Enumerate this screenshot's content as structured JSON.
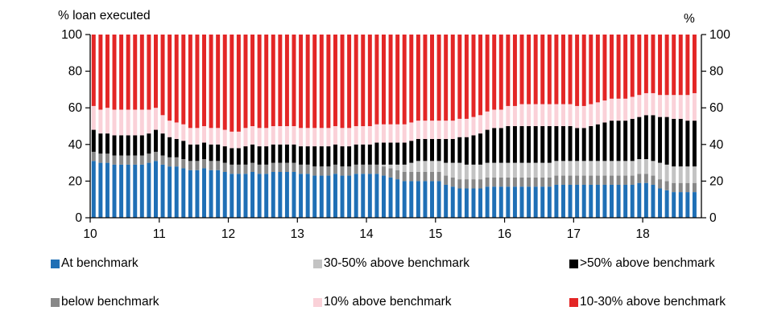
{
  "chart_data": {
    "type": "bar",
    "stacked": true,
    "title": "",
    "ylabel_left": "% loan executed",
    "ylabel_right": "%",
    "ylim": [
      0,
      100
    ],
    "yticks": [
      "0",
      "20",
      "40",
      "60",
      "80",
      "100"
    ],
    "x_range": [
      10,
      18.85
    ],
    "xticks": [
      "10",
      "11",
      "12",
      "13",
      "14",
      "15",
      "16",
      "17",
      "18"
    ],
    "x": [
      10.05,
      10.15,
      10.25,
      10.35,
      10.45,
      10.55,
      10.65,
      10.75,
      10.85,
      10.95,
      11.05,
      11.15,
      11.25,
      11.35,
      11.45,
      11.55,
      11.65,
      11.75,
      11.85,
      11.95,
      12.05,
      12.15,
      12.25,
      12.35,
      12.45,
      12.55,
      12.65,
      12.75,
      12.85,
      12.95,
      13.05,
      13.15,
      13.25,
      13.35,
      13.45,
      13.55,
      13.65,
      13.75,
      13.85,
      13.95,
      14.05,
      14.15,
      14.25,
      14.35,
      14.45,
      14.55,
      14.65,
      14.75,
      14.85,
      14.95,
      15.05,
      15.15,
      15.25,
      15.35,
      15.45,
      15.55,
      15.65,
      15.75,
      15.85,
      15.95,
      16.05,
      16.15,
      16.25,
      16.35,
      16.45,
      16.55,
      16.65,
      16.75,
      16.85,
      16.95,
      17.05,
      17.15,
      17.25,
      17.35,
      17.45,
      17.55,
      17.65,
      17.75,
      17.85,
      17.95,
      18.05,
      18.15,
      18.25,
      18.35,
      18.45,
      18.55,
      18.65,
      18.75
    ],
    "series": [
      {
        "name": "At benchmark",
        "color": "#1f6fb5",
        "values": [
          31,
          30,
          30,
          29,
          29,
          29,
          29,
          29,
          30,
          31,
          29,
          28,
          28,
          27,
          26,
          26,
          27,
          26,
          26,
          25,
          24,
          24,
          24,
          25,
          24,
          24,
          25,
          25,
          25,
          25,
          24,
          24,
          23,
          23,
          23,
          24,
          23,
          23,
          24,
          24,
          24,
          24,
          23,
          22,
          21,
          20,
          20,
          20,
          20,
          20,
          20,
          18,
          17,
          16,
          16,
          16,
          16,
          17,
          17,
          17,
          17,
          17,
          17,
          17,
          17,
          17,
          17,
          18,
          18,
          18,
          18,
          18,
          18,
          18,
          18,
          18,
          18,
          18,
          18,
          19,
          19,
          18,
          16,
          15,
          14,
          14,
          14,
          14
        ]
      },
      {
        "name": "below benchmark",
        "color": "#888888",
        "values": [
          5,
          5,
          5,
          5,
          5,
          5,
          5,
          5,
          5,
          5,
          5,
          5,
          5,
          5,
          5,
          5,
          5,
          5,
          5,
          5,
          5,
          5,
          5,
          5,
          5,
          5,
          5,
          5,
          5,
          5,
          5,
          5,
          5,
          5,
          5,
          5,
          5,
          5,
          5,
          5,
          5,
          5,
          5,
          5,
          5,
          5,
          5,
          5,
          5,
          5,
          5,
          5,
          5,
          5,
          5,
          5,
          5,
          5,
          5,
          5,
          5,
          5,
          5,
          5,
          5,
          5,
          5,
          5,
          5,
          5,
          5,
          5,
          5,
          5,
          5,
          5,
          5,
          5,
          5,
          5,
          5,
          5,
          5,
          5,
          5,
          5,
          5,
          5
        ]
      },
      {
        "name": "30-50% above benchmark",
        "color": "#c3c3c3",
        "values": [
          0,
          0,
          0,
          0,
          0,
          0,
          0,
          0,
          0,
          0,
          0,
          0,
          0,
          0,
          0,
          0,
          0,
          0,
          0,
          0,
          0,
          0,
          0,
          0,
          0,
          0,
          0,
          0,
          0,
          0,
          0,
          0,
          0,
          0,
          0,
          0,
          0,
          0,
          0,
          0,
          0,
          0,
          1,
          2,
          3,
          4,
          5,
          6,
          6,
          6,
          6,
          7,
          8,
          9,
          8,
          8,
          8,
          8,
          8,
          8,
          8,
          8,
          8,
          8,
          8,
          8,
          8,
          8,
          8,
          8,
          8,
          8,
          8,
          8,
          8,
          8,
          8,
          8,
          8,
          8,
          8,
          8,
          9,
          9,
          9,
          9,
          9,
          9
        ]
      },
      {
        "name": ">50% above benchmark",
        "color": "#000000",
        "values": [
          12,
          11,
          11,
          11,
          11,
          11,
          11,
          11,
          11,
          12,
          12,
          11,
          10,
          10,
          9,
          9,
          9,
          9,
          9,
          9,
          9,
          9,
          10,
          10,
          10,
          10,
          10,
          10,
          10,
          10,
          10,
          10,
          11,
          11,
          11,
          11,
          11,
          11,
          11,
          11,
          11,
          12,
          12,
          12,
          12,
          12,
          12,
          12,
          12,
          12,
          12,
          13,
          13,
          14,
          15,
          16,
          17,
          18,
          19,
          19,
          20,
          20,
          20,
          20,
          20,
          20,
          20,
          19,
          19,
          19,
          18,
          18,
          19,
          20,
          21,
          22,
          22,
          22,
          23,
          23,
          24,
          25,
          25,
          26,
          26,
          26,
          25,
          25
        ]
      },
      {
        "name": "10% above benchmark",
        "color": "#fad1d8",
        "values": [
          13,
          13,
          14,
          14,
          14,
          14,
          14,
          14,
          13,
          12,
          10,
          9,
          9,
          9,
          9,
          9,
          9,
          9,
          9,
          9,
          9,
          9,
          10,
          10,
          10,
          10,
          10,
          10,
          10,
          10,
          10,
          10,
          10,
          10,
          10,
          10,
          10,
          10,
          10,
          10,
          10,
          10,
          10,
          10,
          10,
          10,
          10,
          10,
          10,
          10,
          10,
          10,
          10,
          10,
          10,
          10,
          10,
          10,
          10,
          10,
          11,
          11,
          12,
          12,
          12,
          12,
          12,
          12,
          12,
          12,
          12,
          12,
          12,
          12,
          12,
          12,
          12,
          12,
          12,
          12,
          12,
          12,
          12,
          12,
          13,
          13,
          14,
          15
        ]
      },
      {
        "name": "10-30% above benchmark",
        "color": "#e32626",
        "values": [
          39,
          41,
          40,
          41,
          41,
          41,
          41,
          41,
          41,
          40,
          44,
          47,
          48,
          49,
          51,
          51,
          50,
          51,
          51,
          52,
          53,
          53,
          51,
          50,
          51,
          51,
          50,
          50,
          50,
          50,
          51,
          51,
          51,
          51,
          51,
          50,
          51,
          51,
          50,
          50,
          50,
          49,
          49,
          49,
          49,
          49,
          48,
          47,
          47,
          47,
          47,
          47,
          47,
          46,
          46,
          45,
          44,
          42,
          41,
          41,
          39,
          39,
          38,
          38,
          38,
          38,
          38,
          38,
          38,
          38,
          39,
          39,
          38,
          37,
          36,
          35,
          35,
          35,
          34,
          33,
          32,
          32,
          33,
          33,
          33,
          33,
          33,
          32
        ]
      }
    ]
  },
  "legend": [
    {
      "label": "At benchmark",
      "color": "#1f6fb5"
    },
    {
      "label": "30-50% above benchmark",
      "color": "#c3c3c3"
    },
    {
      "label": ">50% above benchmark",
      "color": "#000000"
    },
    {
      "label": "below benchmark",
      "color": "#888888"
    },
    {
      "label": "10% above benchmark",
      "color": "#fad1d8"
    },
    {
      "label": "10-30% above benchmark",
      "color": "#e32626"
    }
  ]
}
